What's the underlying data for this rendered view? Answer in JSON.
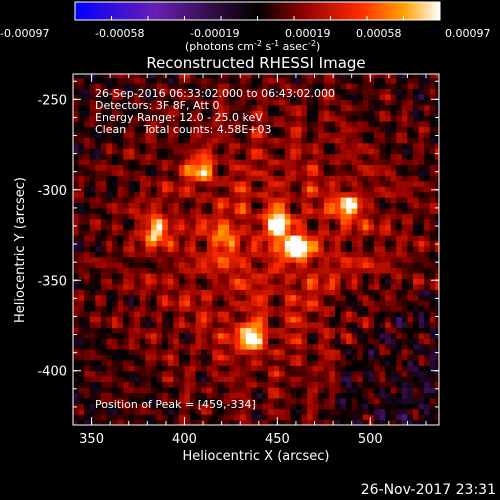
{
  "colorbar": {
    "ticks": [
      "-0.00097",
      "-0.00058",
      "-0.00019",
      "0.00019",
      "0.00058",
      "0.00097"
    ],
    "unit_label_parts": [
      "(photons cm",
      "-2",
      " s",
      "-1",
      " asec",
      "-2",
      ")"
    ]
  },
  "chart_data": {
    "type": "heatmap",
    "title": "Reconstructed RHESSI Image",
    "xlabel": "Heliocentric X (arcsec)",
    "ylabel": "Heliocentric Y (arcsec)",
    "xlim": [
      340,
      537
    ],
    "ylim": [
      -430,
      -236
    ],
    "x_ticks": [
      350,
      400,
      450,
      500
    ],
    "y_ticks": [
      -250,
      -300,
      -350,
      -400
    ],
    "z_range": [
      -0.00097,
      0.00097
    ],
    "annotations": [
      "26-Sep-2016 06:33:02.000 to 06:43:02.000",
      "Detectors: 3F 8F, Att 0",
      "Energy Range: 12.0 - 25.0 keV",
      "Clean     Total counts: 4.58E+03"
    ],
    "peak_label": "Position of Peak = [459,-334]",
    "peak": [
      459,
      -334
    ],
    "bright_sources": [
      {
        "x": 459,
        "y": -334,
        "intensity": 0.00097
      },
      {
        "x": 449,
        "y": -320,
        "intensity": 0.00075
      },
      {
        "x": 433,
        "y": -383,
        "intensity": 0.0009
      },
      {
        "x": 383,
        "y": -323,
        "intensity": 0.0008
      },
      {
        "x": 487,
        "y": -310,
        "intensity": 0.0007
      },
      {
        "x": 407,
        "y": -290,
        "intensity": 0.0006
      },
      {
        "x": 420,
        "y": -330,
        "intensity": 0.00055
      }
    ]
  },
  "timestamp": "26-Nov-2017 23:31"
}
